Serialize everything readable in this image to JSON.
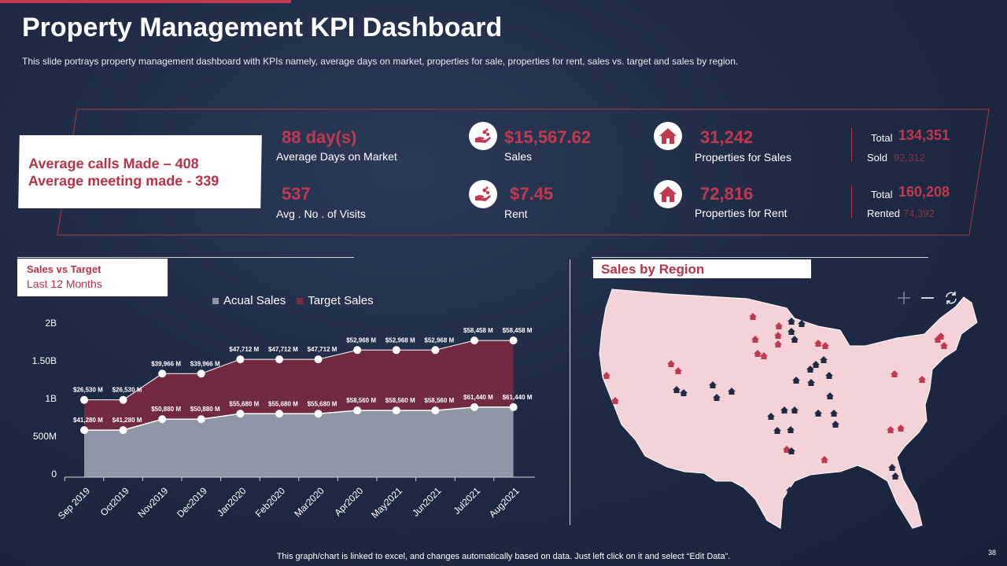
{
  "header": {
    "title": "Property Management KPI Dashboard",
    "subtitle": "This slide portrays property management dashboard with KPIs namely, average  days on market, properties for sale, properties for rent, sales vs. target and sales by region."
  },
  "callout": {
    "line1": "Average calls Made – 408",
    "line2": "Average meeting made - 339"
  },
  "kpis": {
    "days_on_market": {
      "value": "88 day(s)",
      "label": "Average Days on Market"
    },
    "visits": {
      "value": "537",
      "label": "Avg . No . of Visits"
    },
    "sales": {
      "value": "$15,567.62",
      "label": "Sales",
      "icon": "hand-coins-icon"
    },
    "rent": {
      "value": "$7.45",
      "label": "Rent",
      "icon": "hand-coins-icon"
    },
    "properties_for_sale": {
      "value": "31,242",
      "label": "Properties for Sales",
      "icon": "house-icon",
      "total_label": "Total",
      "total": "134,351",
      "sub_label": "Sold",
      "sub_value": "92,312"
    },
    "properties_for_rent": {
      "value": "72,816",
      "label": "Properties for Rent",
      "icon": "house-icon",
      "total_label": "Total",
      "total": "160,208",
      "sub_label": "Rented",
      "sub_value": "74,392"
    }
  },
  "sales_panel": {
    "title": "Sales vs Target",
    "subtitle": "Last 12 Months"
  },
  "region_panel": {
    "title": "Sales by Region",
    "controls": [
      "plus-icon",
      "minus-icon",
      "refresh-icon"
    ]
  },
  "colors": {
    "accent": "#c0394f",
    "actual": "#8f97a6",
    "target": "#7a2a40",
    "background": "#1f2b45",
    "map": "#f4d3d8",
    "marker_red": "#c0394f",
    "marker_navy": "#1f2b45"
  },
  "chart_data": {
    "type": "area",
    "stacked": true,
    "categories": [
      "Sep 2019",
      "Oct2019",
      "Nov2019",
      "Dec2019",
      "Jan2020",
      "Feb2020",
      "Mar2020",
      "Apr2020",
      "May2021",
      "Jun2021",
      "Jul2021",
      "Aug2021"
    ],
    "yticks": [
      "0",
      "500M",
      "1B",
      "1.50B",
      "2B"
    ],
    "ylim": [
      0,
      2000000000
    ],
    "legend_position": "top",
    "series": [
      {
        "name": "Acual Sales",
        "values": [
          41280,
          41280,
          50880,
          50880,
          55680,
          55680,
          55680,
          58560,
          58560,
          58560,
          61440,
          61440
        ],
        "labels": [
          "$41,280 M",
          "$41,280 M",
          "$50,880 M",
          "$50,880 M",
          "$55,680 M",
          "$55,680 M",
          "$55,680 M",
          "$58,560 M",
          "$58,560 M",
          "$58,560 M",
          "$61,440 M",
          "$61,440 M"
        ]
      },
      {
        "name": "Target Sales",
        "values": [
          26530,
          26530,
          39966,
          39966,
          47712,
          47712,
          47712,
          52968,
          52968,
          52968,
          58458,
          58458
        ],
        "labels": [
          "$26,530 M",
          "$26,530 M",
          "$39,966 M",
          "$39,966 M",
          "$47,712 M",
          "$47,712 M",
          "$47,712 M",
          "$52,968 M",
          "$52,968 M",
          "$52,968 M",
          "$58,458 M",
          "$58,458 M"
        ]
      }
    ]
  },
  "footer": {
    "note": "This graph/chart is linked to excel, and changes automatically based on data. Just left click on it and select “Edit Data”.",
    "page": "38"
  }
}
